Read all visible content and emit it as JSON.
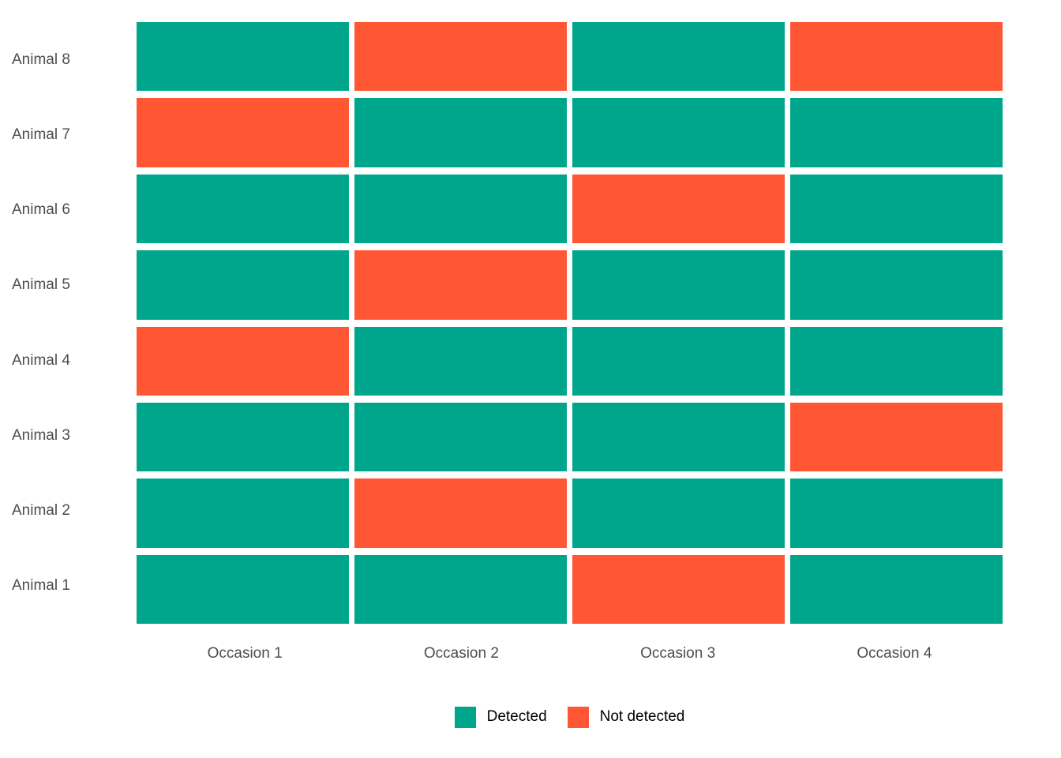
{
  "chart_data": {
    "type": "heatmap",
    "title": "",
    "x_categories": [
      "Occasion 1",
      "Occasion 2",
      "Occasion 3",
      "Occasion 4"
    ],
    "y_categories_top_to_bottom": [
      "Animal 8",
      "Animal 7",
      "Animal 6",
      "Animal 5",
      "Animal 4",
      "Animal 3",
      "Animal 2",
      "Animal 1"
    ],
    "matrix_top_to_bottom": [
      [
        1,
        0,
        1,
        0
      ],
      [
        0,
        1,
        1,
        1
      ],
      [
        1,
        1,
        0,
        1
      ],
      [
        1,
        0,
        1,
        1
      ],
      [
        0,
        1,
        1,
        1
      ],
      [
        1,
        1,
        1,
        0
      ],
      [
        1,
        0,
        1,
        1
      ],
      [
        1,
        1,
        0,
        1
      ]
    ],
    "value_meaning": {
      "1": "Detected",
      "0": "Not detected"
    },
    "legend": [
      {
        "label": "Detected",
        "value": 1,
        "color": "#00A68C"
      },
      {
        "label": "Not detected",
        "value": 0,
        "color": "#FF5733"
      }
    ],
    "legend_position": "bottom-center",
    "grid": "off",
    "colors": {
      "detected": "#00A68C",
      "not_detected": "#FF5733",
      "axis_text": "#4D4D4D",
      "legend_text": "#000000",
      "background": "#FFFFFF"
    }
  }
}
